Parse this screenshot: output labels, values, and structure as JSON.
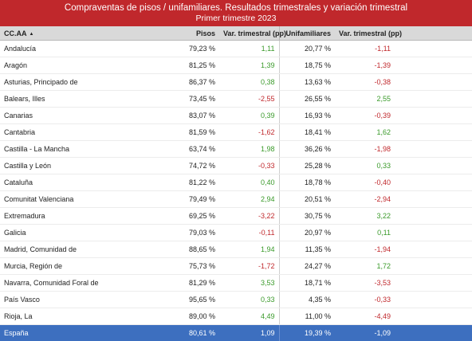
{
  "title": {
    "line1": "Compraventas de pisos / unifamiliares. Resultados trimestrales  y variación trimestral",
    "line2": "Primer trimestre 2023"
  },
  "headers": {
    "region": "CC.AA",
    "sort_indicator": "▲",
    "pisos": "Pisos",
    "var_pisos": "Var. trimestral (pp)",
    "unifamiliares": "Unifamiliares",
    "var_unif": "Var. trimestral (pp)"
  },
  "rows": [
    {
      "region": "Andalucía",
      "pisos": "79,23 %",
      "var_pisos": "1,11",
      "var_pisos_sign": "pos",
      "unif": "20,77 %",
      "var_unif": "-1,11",
      "var_unif_sign": "neg"
    },
    {
      "region": "Aragón",
      "pisos": "81,25 %",
      "var_pisos": "1,39",
      "var_pisos_sign": "pos",
      "unif": "18,75 %",
      "var_unif": "-1,39",
      "var_unif_sign": "neg"
    },
    {
      "region": "Asturias, Principado de",
      "pisos": "86,37 %",
      "var_pisos": "0,38",
      "var_pisos_sign": "pos",
      "unif": "13,63 %",
      "var_unif": "-0,38",
      "var_unif_sign": "neg"
    },
    {
      "region": "Balears, Illes",
      "pisos": "73,45 %",
      "var_pisos": "-2,55",
      "var_pisos_sign": "neg",
      "unif": "26,55 %",
      "var_unif": "2,55",
      "var_unif_sign": "pos"
    },
    {
      "region": "Canarias",
      "pisos": "83,07 %",
      "var_pisos": "0,39",
      "var_pisos_sign": "pos",
      "unif": "16,93 %",
      "var_unif": "-0,39",
      "var_unif_sign": "neg"
    },
    {
      "region": "Cantabria",
      "pisos": "81,59 %",
      "var_pisos": "-1,62",
      "var_pisos_sign": "neg",
      "unif": "18,41 %",
      "var_unif": "1,62",
      "var_unif_sign": "pos"
    },
    {
      "region": "Castilla - La Mancha",
      "pisos": "63,74 %",
      "var_pisos": "1,98",
      "var_pisos_sign": "pos",
      "unif": "36,26 %",
      "var_unif": "-1,98",
      "var_unif_sign": "neg"
    },
    {
      "region": "Castilla y León",
      "pisos": "74,72 %",
      "var_pisos": "-0,33",
      "var_pisos_sign": "neg",
      "unif": "25,28 %",
      "var_unif": "0,33",
      "var_unif_sign": "pos"
    },
    {
      "region": "Cataluña",
      "pisos": "81,22 %",
      "var_pisos": "0,40",
      "var_pisos_sign": "pos",
      "unif": "18,78 %",
      "var_unif": "-0,40",
      "var_unif_sign": "neg"
    },
    {
      "region": "Comunitat Valenciana",
      "pisos": "79,49 %",
      "var_pisos": "2,94",
      "var_pisos_sign": "pos",
      "unif": "20,51 %",
      "var_unif": "-2,94",
      "var_unif_sign": "neg"
    },
    {
      "region": "Extremadura",
      "pisos": "69,25 %",
      "var_pisos": "-3,22",
      "var_pisos_sign": "neg",
      "unif": "30,75 %",
      "var_unif": "3,22",
      "var_unif_sign": "pos"
    },
    {
      "region": "Galicia",
      "pisos": "79,03 %",
      "var_pisos": "-0,11",
      "var_pisos_sign": "neg",
      "unif": "20,97 %",
      "var_unif": "0,11",
      "var_unif_sign": "pos"
    },
    {
      "region": "Madrid, Comunidad de",
      "pisos": "88,65 %",
      "var_pisos": "1,94",
      "var_pisos_sign": "pos",
      "unif": "11,35 %",
      "var_unif": "-1,94",
      "var_unif_sign": "neg"
    },
    {
      "region": "Murcia, Región de",
      "pisos": "75,73 %",
      "var_pisos": "-1,72",
      "var_pisos_sign": "neg",
      "unif": "24,27 %",
      "var_unif": "1,72",
      "var_unif_sign": "pos"
    },
    {
      "region": "Navarra, Comunidad Foral de",
      "pisos": "81,29 %",
      "var_pisos": "3,53",
      "var_pisos_sign": "pos",
      "unif": "18,71 %",
      "var_unif": "-3,53",
      "var_unif_sign": "neg"
    },
    {
      "region": "País Vasco",
      "pisos": "95,65 %",
      "var_pisos": "0,33",
      "var_pisos_sign": "pos",
      "unif": "4,35 %",
      "var_unif": "-0,33",
      "var_unif_sign": "neg"
    },
    {
      "region": "Rioja, La",
      "pisos": "89,00 %",
      "var_pisos": "4,49",
      "var_pisos_sign": "pos",
      "unif": "11,00 %",
      "var_unif": "-4,49",
      "var_unif_sign": "neg"
    }
  ],
  "total": {
    "region": "España",
    "pisos": "80,61 %",
    "var_pisos": "1,09",
    "unif": "19,39 %",
    "var_unif": "-1,09"
  },
  "colors": {
    "title_bg": "#c0282c",
    "header_bg": "#d9d9d9",
    "total_bg": "#3d6fbf",
    "positive": "#3a9a2a",
    "negative": "#c0282c"
  }
}
